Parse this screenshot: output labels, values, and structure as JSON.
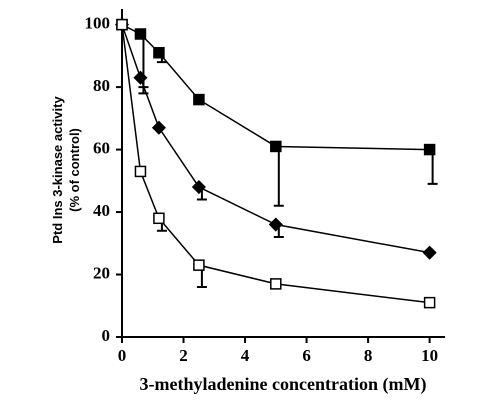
{
  "chart_data": {
    "type": "line",
    "x_label": "3-methyladenine concentration (mM)",
    "y_label": [
      "Ptd Ins 3-kinase activity",
      "(% of control)"
    ],
    "x": [
      0,
      0.6,
      1.2,
      2.5,
      5,
      10
    ],
    "series": [
      {
        "marker": "square",
        "color": "#000000",
        "fill": "#000000",
        "values": [
          100,
          97,
          91,
          76,
          61,
          60
        ],
        "errors": [
          null,
          17,
          3,
          null,
          19,
          11
        ]
      },
      {
        "marker": "diamond",
        "color": "#000000",
        "fill": "#000000",
        "values": [
          100,
          83,
          67,
          48,
          36,
          27
        ],
        "errors": [
          null,
          5,
          null,
          4,
          4,
          null
        ]
      },
      {
        "marker": "square",
        "color": "#000000",
        "fill": "#ffffff",
        "values": [
          100,
          53,
          38,
          23,
          17,
          11
        ],
        "errors": [
          null,
          null,
          4,
          7,
          null,
          null
        ]
      }
    ],
    "xlim": [
      0,
      10.5
    ],
    "ylim": [
      0,
      105
    ],
    "xticks": [
      0,
      2,
      4,
      6,
      8,
      10
    ],
    "yticks": [
      0,
      20,
      40,
      60,
      80,
      100
    ]
  }
}
